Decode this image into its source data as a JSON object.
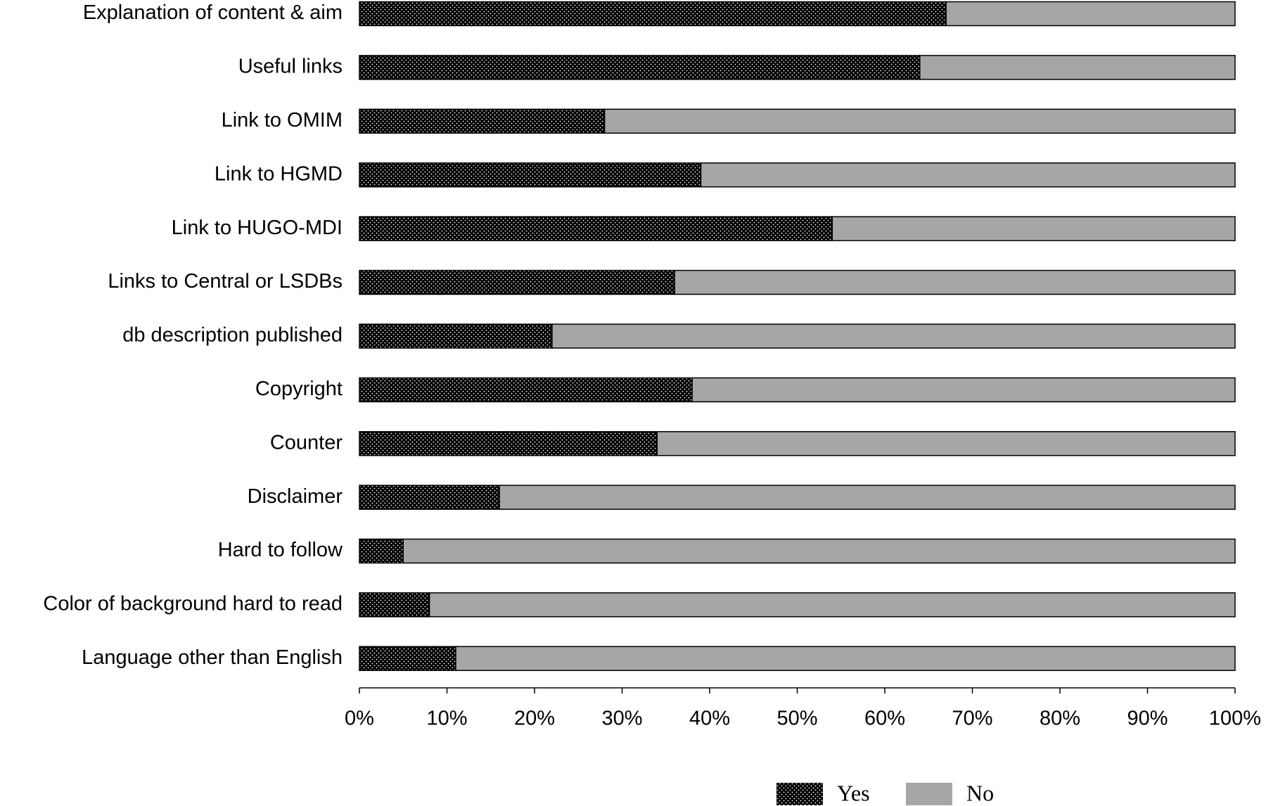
{
  "chart_data": {
    "type": "stacked-bar-horizontal",
    "categories": [
      "Explanation of content & aim",
      "Useful links",
      "Link to OMIM",
      "Link to HGMD",
      "Link to HUGO-MDI",
      "Links to Central or LSDBs",
      "db description published",
      "Copyright",
      "Counter",
      "Disclaimer",
      "Hard to follow",
      "Color of background hard to read",
      "Language other than English"
    ],
    "series": [
      {
        "name": "Yes",
        "color": "#000000",
        "pattern": "dots",
        "values": [
          67,
          64,
          28,
          39,
          54,
          36,
          22,
          38,
          34,
          16,
          5,
          8,
          11
        ]
      },
      {
        "name": "No",
        "color": "#a6a6a6",
        "values": [
          33,
          36,
          72,
          61,
          46,
          64,
          78,
          62,
          66,
          84,
          95,
          92,
          89
        ]
      }
    ],
    "xlim": [
      0,
      100
    ],
    "xticks": [
      {
        "value": 0,
        "label": "0%"
      },
      {
        "value": 10,
        "label": "10%"
      },
      {
        "value": 20,
        "label": "20%"
      },
      {
        "value": 30,
        "label": "30%"
      },
      {
        "value": 40,
        "label": "40%"
      },
      {
        "value": 50,
        "label": "50%"
      },
      {
        "value": 60,
        "label": "60%"
      },
      {
        "value": 70,
        "label": "70%"
      },
      {
        "value": 80,
        "label": "80%"
      },
      {
        "value": 90,
        "label": "90%"
      },
      {
        "value": 100,
        "label": "100%"
      }
    ],
    "legend": "bottom"
  }
}
